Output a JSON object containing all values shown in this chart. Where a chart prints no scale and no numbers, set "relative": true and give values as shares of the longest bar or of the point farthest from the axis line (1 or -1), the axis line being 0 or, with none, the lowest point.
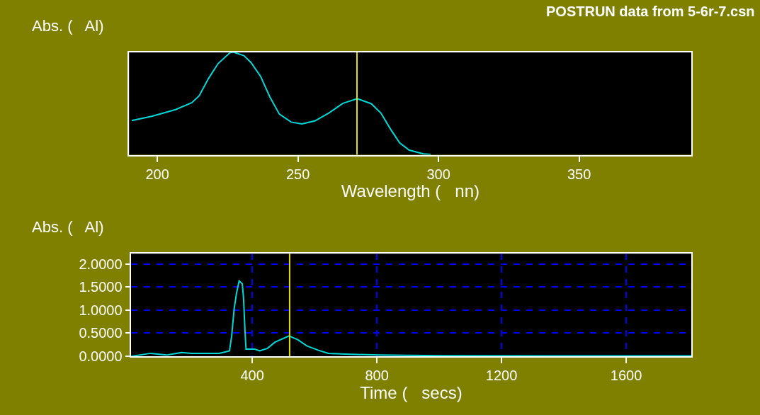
{
  "chart_data": [
    {
      "type": "line",
      "title": "POSTRUN data from 5-6r-7.csn",
      "ylabel": "Abs. (   Al)",
      "xlabel": "Wavelength (   nn)",
      "relative": true,
      "xlim": [
        190,
        390
      ],
      "xticks": [
        200,
        250,
        300,
        350
      ],
      "grid": false,
      "x": [
        190.9,
        198,
        206.5,
        212.3,
        214.9,
        218.2,
        221.6,
        225.8,
        227,
        230.8,
        233.3,
        236.7,
        240,
        243.4,
        247.6,
        251.4,
        256,
        261,
        266,
        271.1,
        276.1,
        279.5,
        282.9,
        286.2,
        289.6,
        294.6,
        297.2
      ],
      "series": [
        {
          "color": "#00d8d8",
          "values": [
            0.333,
            0.374,
            0.44,
            0.508,
            0.575,
            0.743,
            0.888,
            0.993,
            1.0,
            0.966,
            0.899,
            0.765,
            0.564,
            0.396,
            0.318,
            0.3,
            0.329,
            0.407,
            0.501,
            0.546,
            0.497,
            0.407,
            0.251,
            0.116,
            0.045,
            0.009,
            0.004
          ]
        }
      ],
      "ref_lines": [
        {
          "axis": "x",
          "value": 271,
          "color": "#e0e000"
        }
      ]
    },
    {
      "type": "line",
      "ylabel": "Abs. (   Al)",
      "xlabel": "Time (   secs)",
      "xlim": [
        10,
        1810
      ],
      "xticks": [
        400,
        800,
        1200,
        1600
      ],
      "ylim": [
        0,
        2.22
      ],
      "yticks": [
        {
          "value": 0,
          "label": "0.0000"
        },
        {
          "value": 0.5,
          "label": "0.5000"
        },
        {
          "value": 1,
          "label": "1.0000"
        },
        {
          "value": 1.5,
          "label": "1.5000"
        },
        {
          "value": 2,
          "label": "2.0000"
        }
      ],
      "grid": true,
      "x": [
        10,
        75,
        124,
        173,
        205,
        294,
        327,
        334,
        342,
        350,
        358,
        368,
        372,
        377,
        380,
        408,
        424,
        449,
        473,
        518,
        546,
        575,
        611,
        644,
        700,
        806,
        1000,
        1400,
        1810
      ],
      "series": [
        {
          "color": "#00d8d8",
          "values": [
            0,
            0.065,
            0.027,
            0.081,
            0.065,
            0.065,
            0.118,
            0.44,
            1.03,
            1.38,
            1.63,
            1.57,
            1.27,
            0.52,
            0.156,
            0.156,
            0.118,
            0.172,
            0.306,
            0.44,
            0.36,
            0.226,
            0.134,
            0.065,
            0.048,
            0.027,
            0.015,
            0.01,
            0.01
          ]
        }
      ],
      "ref_lines": [
        {
          "axis": "x",
          "value": 520,
          "color": "#e0e000"
        }
      ]
    }
  ]
}
